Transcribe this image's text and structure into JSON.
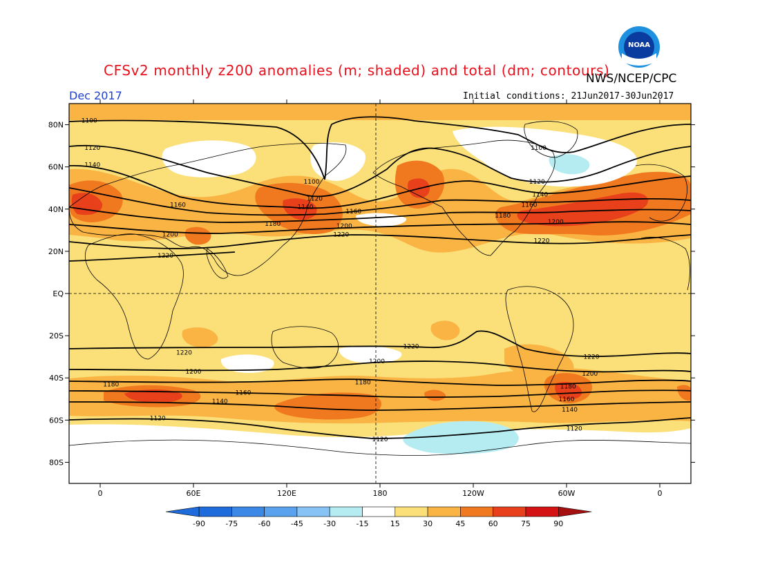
{
  "header": {
    "title": "CFSv2 monthly z200 anomalies (m; shaded) and total (dm; contours)",
    "agency": "NWS/NCEP/CPC",
    "valid_date": "Dec 2017",
    "init_conditions": "Initial conditions: 21Jun2017-30Jun2017",
    "logo_text": "NOAA",
    "logo_icon": "noaa-logo-icon"
  },
  "map": {
    "lon_range": [
      -20,
      380
    ],
    "lat_range": [
      -90,
      90
    ],
    "lat_ticks": [
      "80N",
      "60N",
      "40N",
      "20N",
      "EQ",
      "20S",
      "40S",
      "60S",
      "80S"
    ],
    "lat_tick_values": [
      80,
      60,
      40,
      20,
      0,
      -20,
      -40,
      -60,
      -80
    ],
    "lon_ticks": [
      "0",
      "60E",
      "120E",
      "180",
      "120W",
      "60W",
      "0"
    ],
    "lon_tick_values": [
      0,
      60,
      120,
      180,
      240,
      300,
      360
    ],
    "reference_lines": [
      "equator",
      "dateline"
    ],
    "colors": {
      "c15_30": "#fbe07a",
      "c30_45": "#f9b444",
      "c45_60": "#f07920",
      "c60_75": "#e8401b",
      "neg_m15_m30": "#b5ecf2",
      "contour": "#000000"
    },
    "contour_labels": [
      {
        "text": "1100",
        "lon": -7,
        "lat": 82
      },
      {
        "text": "1120",
        "lon": -5,
        "lat": 69
      },
      {
        "text": "1140",
        "lon": -5,
        "lat": 61
      },
      {
        "text": "1160",
        "lon": 50,
        "lat": 42
      },
      {
        "text": "1200",
        "lon": 45,
        "lat": 28
      },
      {
        "text": "1220",
        "lon": 42,
        "lat": 18
      },
      {
        "text": "1100",
        "lon": 136,
        "lat": 53
      },
      {
        "text": "1120",
        "lon": 138,
        "lat": 45
      },
      {
        "text": "1140",
        "lon": 132,
        "lat": 41
      },
      {
        "text": "1180",
        "lon": 111,
        "lat": 33
      },
      {
        "text": "1160",
        "lon": 163,
        "lat": 39
      },
      {
        "text": "1200",
        "lon": 157,
        "lat": 32
      },
      {
        "text": "1220",
        "lon": 155,
        "lat": 28
      },
      {
        "text": "1100",
        "lon": 282,
        "lat": 69
      },
      {
        "text": "1120",
        "lon": 281,
        "lat": 53
      },
      {
        "text": "1140",
        "lon": 283,
        "lat": 47
      },
      {
        "text": "1160",
        "lon": 276,
        "lat": 42
      },
      {
        "text": "1180",
        "lon": 259,
        "lat": 37
      },
      {
        "text": "1200",
        "lon": 293,
        "lat": 34
      },
      {
        "text": "1220",
        "lon": 284,
        "lat": 25
      },
      {
        "text": "1220",
        "lon": 200,
        "lat": -25
      },
      {
        "text": "1220",
        "lon": 54,
        "lat": -28
      },
      {
        "text": "1200",
        "lon": 178,
        "lat": -32
      },
      {
        "text": "1200",
        "lon": 60,
        "lat": -37
      },
      {
        "text": "1180",
        "lon": 7,
        "lat": -43
      },
      {
        "text": "1180",
        "lon": 169,
        "lat": -42
      },
      {
        "text": "1160",
        "lon": 92,
        "lat": -47
      },
      {
        "text": "1140",
        "lon": 77,
        "lat": -51
      },
      {
        "text": "1120",
        "lon": 37,
        "lat": -59
      },
      {
        "text": "1120",
        "lon": 180,
        "lat": -69
      },
      {
        "text": "1220",
        "lon": 316,
        "lat": -30
      },
      {
        "text": "1200",
        "lon": 315,
        "lat": -38
      },
      {
        "text": "1180",
        "lon": 301,
        "lat": -44
      },
      {
        "text": "1160",
        "lon": 300,
        "lat": -50
      },
      {
        "text": "1140",
        "lon": 302,
        "lat": -55
      },
      {
        "text": "1120",
        "lon": 305,
        "lat": -64
      }
    ]
  },
  "colorbar": {
    "labels": [
      "-90",
      "-75",
      "-60",
      "-45",
      "-30",
      "-15",
      "15",
      "30",
      "45",
      "60",
      "75",
      "90"
    ],
    "colors": [
      "#1e6cdc",
      "#3b88e6",
      "#5aa2ee",
      "#87c3f4",
      "#b5ecf2",
      "#ffffff",
      "#fbe07a",
      "#f9b444",
      "#f07920",
      "#e8401b",
      "#d41414"
    ],
    "underflow_color": "#1e6cdc",
    "overflow_color": "#a41010"
  }
}
